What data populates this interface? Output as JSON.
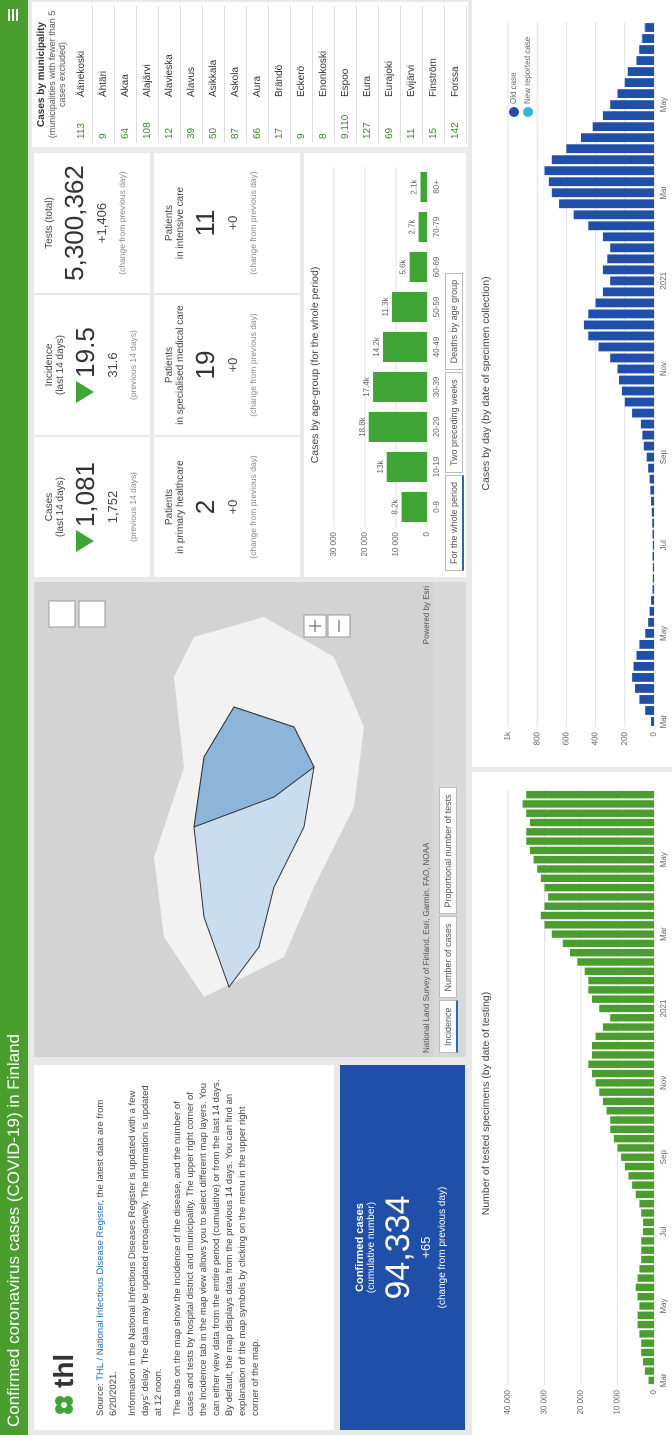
{
  "header": {
    "title": "Confirmed coronavirus cases (COVID-19) in Finland"
  },
  "info": {
    "logo": "thl",
    "source_prefix": "Source: ",
    "source_link": "THL / National Infectious Disease Register",
    "source_suffix": ", the latest data are from 6/20/2021.",
    "paragraphs": [
      "Information in the National Infectious Diseases Register is updated with a few days' delay. The data may be updated retroactively. The information is updated at 12 noon.",
      "The tabs on the map show the incidence of the disease, and the number of cases and tests by hospital district and municipality. The upper right corner of the Incidence tab in the map view allows you to select different map layers. You can either view data from the entire period (cumulative) or from the last 14 days. By default, the map displays data from the previous 14 days. You can find an explanation of the map symbols by clicking on the menu in the upper right corner of the map."
    ]
  },
  "confirmed": {
    "title": "Confirmed cases",
    "subtitle": "(cumulative number)",
    "value": "94,334",
    "change": "+65",
    "note": "(change from previous day)"
  },
  "map": {
    "tabs": [
      "Incidence",
      "Number of cases",
      "Proportional number of tests"
    ],
    "attribution": "National Land Survey of Finland, Esri, Garmin, FAO, NOAA",
    "powered": "Powered by Esri"
  },
  "cards": [
    {
      "title": "Cases",
      "subtitle": "(last 14 days)",
      "value": "1,081",
      "secondary": "1,752",
      "note": "(previous 14 days)"
    },
    {
      "title": "Incidence",
      "subtitle": "(last 14 days)",
      "value": "19.5",
      "secondary": "31.6",
      "note": "(previous 14 days)"
    },
    {
      "title": "Tests (total)",
      "value": "5,300,362",
      "secondary": "+1,406",
      "note": "(change from previous day)"
    }
  ],
  "patients": [
    {
      "title": "Patients",
      "subtitle": "in primary healthcare",
      "value": "2",
      "secondary": "+0",
      "note": "(change from previous day)"
    },
    {
      "title": "Patients",
      "subtitle": "in specialised medical care",
      "value": "19",
      "secondary": "+0",
      "note": "(change from previous day)"
    },
    {
      "title": "Patients",
      "subtitle": "in intensive care",
      "value": "11",
      "secondary": "+0",
      "note": "(change from previous day)"
    }
  ],
  "municipality": {
    "title": "Cases by municipality",
    "subtitle": "(municipalities with fewer than 5 cases excluded)",
    "rows": [
      [
        "113",
        "Äänekoski"
      ],
      [
        "9",
        "Ähtäri"
      ],
      [
        "64",
        "Akaa"
      ],
      [
        "108",
        "Alajärvi"
      ],
      [
        "12",
        "Alavieska"
      ],
      [
        "39",
        "Alavus"
      ],
      [
        "50",
        "Asikkala"
      ],
      [
        "87",
        "Askola"
      ],
      [
        "66",
        "Aura"
      ],
      [
        "17",
        "Brändö"
      ],
      [
        "9",
        "Eckerö"
      ],
      [
        "8",
        "Enonkoski"
      ],
      [
        "9,110",
        "Espoo"
      ],
      [
        "127",
        "Eura"
      ],
      [
        "69",
        "Eurajoki"
      ],
      [
        "11",
        "Evijärvi"
      ],
      [
        "15",
        "Finström"
      ],
      [
        "142",
        "Forssa"
      ]
    ]
  },
  "age_tabs": [
    "For the whole period",
    "Two preceding weeks",
    "Deaths by age group"
  ],
  "chart_data": [
    {
      "type": "bar",
      "title": "Cases by age-group (for the whole period)",
      "categories": [
        "0-9",
        "10-19",
        "20-29",
        "30-39",
        "40-49",
        "50-59",
        "60-69",
        "70-79",
        "80+"
      ],
      "values": [
        8200,
        13000,
        18800,
        17400,
        14200,
        11300,
        5600,
        2700,
        2100
      ],
      "value_labels": [
        "8.2k",
        "13k",
        "18.8k",
        "17.4k",
        "14.2k",
        "11.3k",
        "5.6k",
        "2.7k",
        "2.1k"
      ],
      "color": "#3fa535",
      "ylim": [
        0,
        30000
      ],
      "yticks": [
        0,
        {
          "value": 10000,
          "label": "10 000"
        },
        {
          "value": 20000,
          "label": "20 000"
        },
        {
          "value": 30000,
          "label": "30 000"
        }
      ],
      "grid": true
    },
    {
      "type": "bar",
      "title": "Number of tested specimens (by date of testing)",
      "categories": [
        "Mar",
        null,
        null,
        null,
        null,
        null,
        null,
        null,
        "May",
        null,
        null,
        null,
        null,
        null,
        null,
        null,
        "Jul",
        null,
        null,
        null,
        null,
        null,
        null,
        null,
        "Sep",
        null,
        null,
        null,
        null,
        null,
        null,
        null,
        "Nov",
        null,
        null,
        null,
        null,
        null,
        null,
        null,
        "2021",
        null,
        null,
        null,
        null,
        null,
        null,
        null,
        "Mar",
        null,
        null,
        null,
        null,
        null,
        null,
        null,
        "May",
        null,
        null,
        null,
        null,
        null,
        null,
        null
      ],
      "values": [
        1500,
        2500,
        3000,
        3500,
        3500,
        4000,
        4500,
        4500,
        4000,
        4500,
        5000,
        4500,
        4000,
        3500,
        3500,
        3500,
        3000,
        3000,
        3500,
        4000,
        5000,
        6000,
        7000,
        8000,
        9000,
        10000,
        11000,
        12000,
        12000,
        13000,
        14000,
        15000,
        16000,
        17000,
        18000,
        17000,
        17000,
        16000,
        14000,
        12000,
        15000,
        17000,
        18000,
        18000,
        19000,
        21000,
        23000,
        25000,
        28000,
        30000,
        31000,
        30000,
        29000,
        30000,
        31000,
        32000,
        33000,
        34000,
        35000,
        35000,
        34000,
        35000,
        36000,
        35000
      ],
      "color": "#4a9e2e",
      "ylim": [
        0,
        40000
      ],
      "yticks": [
        0,
        {
          "value": 10000,
          "label": "10 000"
        },
        {
          "value": 20000,
          "label": "20 000"
        },
        {
          "value": 30000,
          "label": "30 000"
        },
        {
          "value": 40000,
          "label": "40 000"
        }
      ],
      "grid": true
    },
    {
      "type": "bar",
      "title": "Cases by day (by date of specimen collection)",
      "categories": [
        "Mar",
        null,
        null,
        null,
        null,
        null,
        null,
        null,
        "May",
        null,
        null,
        null,
        null,
        null,
        null,
        null,
        "Jul",
        null,
        null,
        null,
        null,
        null,
        null,
        null,
        "Sep",
        null,
        null,
        null,
        null,
        null,
        null,
        null,
        "Nov",
        null,
        null,
        null,
        null,
        null,
        null,
        null,
        "2021",
        null,
        null,
        null,
        null,
        null,
        null,
        null,
        "Mar",
        null,
        null,
        null,
        null,
        null,
        null,
        null,
        "May",
        null,
        null,
        null,
        null,
        null,
        null,
        null
      ],
      "series": [
        {
          "name": "Old case",
          "color": "#1f4fa8",
          "values": [
            20,
            60,
            100,
            130,
            150,
            140,
            120,
            100,
            60,
            40,
            30,
            20,
            10,
            8,
            8,
            10,
            8,
            10,
            12,
            15,
            20,
            25,
            30,
            40,
            50,
            70,
            80,
            90,
            150,
            200,
            220,
            240,
            250,
            300,
            380,
            450,
            480,
            450,
            400,
            350,
            300,
            350,
            320,
            300,
            350,
            450,
            550,
            650,
            700,
            720,
            750,
            700,
            600,
            500,
            420,
            350,
            300,
            250,
            200,
            180,
            120,
            100,
            80,
            60
          ]
        },
        {
          "name": "New reported case",
          "color": "#2fb3e8",
          "values": [
            0,
            0,
            0,
            0,
            0,
            0,
            0,
            0,
            0,
            0,
            0,
            0,
            0,
            0,
            0,
            0,
            0,
            0,
            0,
            0,
            0,
            0,
            0,
            0,
            0,
            0,
            0,
            0,
            0,
            0,
            0,
            0,
            0,
            0,
            0,
            0,
            0,
            0,
            0,
            0,
            0,
            0,
            0,
            0,
            0,
            0,
            0,
            0,
            0,
            0,
            0,
            0,
            0,
            0,
            0,
            0,
            0,
            0,
            0,
            0,
            0,
            3,
            4,
            5
          ]
        }
      ],
      "ylim": [
        0,
        1000
      ],
      "yticks": [
        0,
        200,
        400,
        600,
        800,
        {
          "value": 1000,
          "label": "1k"
        }
      ],
      "grid": true,
      "legend": "top-right"
    }
  ]
}
